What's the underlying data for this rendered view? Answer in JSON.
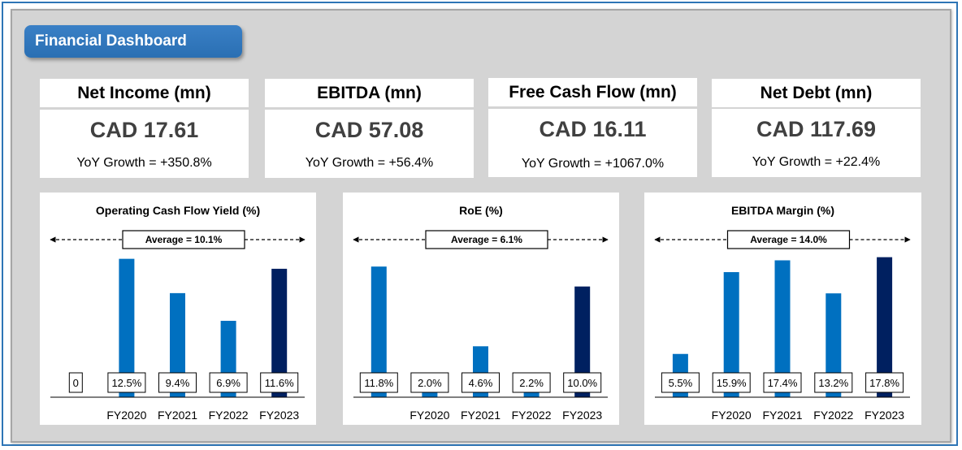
{
  "header": {
    "title": "Financial Dashboard"
  },
  "kpis": [
    {
      "label": "Net Income (mn)",
      "value": "CAD 17.61",
      "growth": "YoY Growth = +350.8%"
    },
    {
      "label": "EBITDA (mn)",
      "value": "CAD 57.08",
      "growth": "YoY Growth = +56.4%"
    },
    {
      "label": "Free Cash Flow (mn)",
      "value": "CAD 16.11",
      "growth": "YoY Growth = +1067.0%"
    },
    {
      "label": "Net Debt (mn)",
      "value": "CAD 117.69",
      "growth": "YoY Growth = +22.4%"
    }
  ],
  "colors": {
    "bar": "#0070c0",
    "bar_latest": "#002060",
    "title_pill": "#2e75b6",
    "background": "#d4d4d4"
  },
  "chart_data": [
    {
      "type": "bar",
      "title": "Operating Cash Flow Yield (%)",
      "average_label": "Average = 10.1%",
      "average": 10.1,
      "categories": [
        "",
        "FY2020",
        "FY2021",
        "FY2022",
        "FY2023"
      ],
      "values": [
        0,
        12.5,
        9.4,
        6.9,
        11.6
      ],
      "data_labels": [
        "0",
        "12.5%",
        "9.4%",
        "6.9%",
        "11.6%"
      ],
      "highlight": "FY2023",
      "ylim": [
        0,
        13.5
      ]
    },
    {
      "type": "bar",
      "title": "RoE (%)",
      "average_label": "Average = 6.1%",
      "average": 6.1,
      "categories": [
        "",
        "FY2020",
        "FY2021",
        "FY2022",
        "FY2023"
      ],
      "values": [
        11.8,
        2.0,
        4.6,
        2.2,
        10.0
      ],
      "data_labels": [
        "11.8%",
        "2.0%",
        "4.6%",
        "2.2%",
        "10.0%"
      ],
      "highlight": "FY2023",
      "ylim": [
        0,
        13.5
      ]
    },
    {
      "type": "bar",
      "title": "EBITDA Margin (%)",
      "average_label": "Average = 14.0%",
      "average": 14.0,
      "categories": [
        "",
        "FY2020",
        "FY2021",
        "FY2022",
        "FY2023"
      ],
      "values": [
        5.5,
        15.9,
        17.4,
        13.2,
        17.8
      ],
      "data_labels": [
        "5.5%",
        "15.9%",
        "17.4%",
        "13.2%",
        "17.8%"
      ],
      "highlight": "FY2023",
      "ylim": [
        0,
        19.0
      ]
    }
  ]
}
